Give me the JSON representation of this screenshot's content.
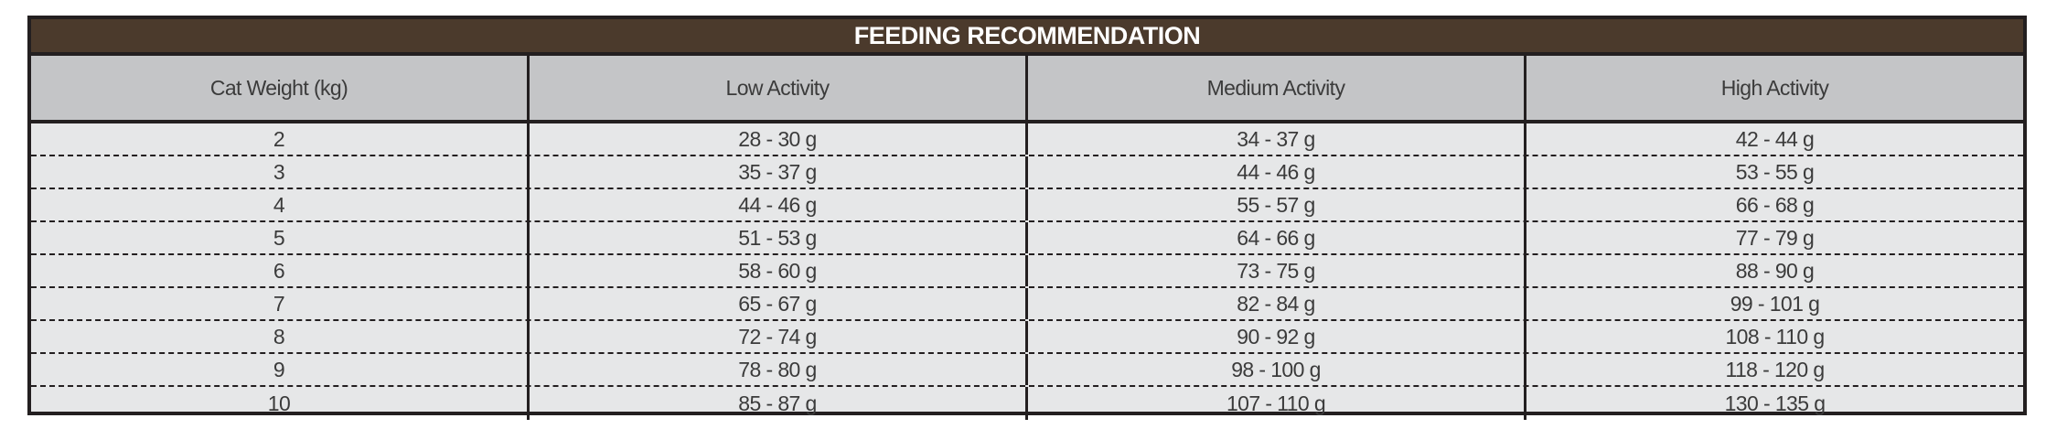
{
  "title": "FEEDING RECOMMENDATION",
  "columns": [
    "Cat Weight (kg)",
    "Low Activity",
    "Medium Activity",
    "High Activity"
  ],
  "rows": [
    [
      "2",
      "28 - 30 g",
      "34 - 37 g",
      "42 - 44 g"
    ],
    [
      "3",
      "35 - 37 g",
      "44 - 46 g",
      "53 - 55 g"
    ],
    [
      "4",
      "44 - 46 g",
      "55 - 57 g",
      "66 - 68 g"
    ],
    [
      "5",
      "51 - 53 g",
      "64 - 66 g",
      "77 - 79 g"
    ],
    [
      "6",
      "58 - 60 g",
      "73 - 75 g",
      "88 - 90 g"
    ],
    [
      "7",
      "65 - 67 g",
      "82 - 84 g",
      "99 - 101 g"
    ],
    [
      "8",
      "72 - 74 g",
      "90 - 92 g",
      "108 - 110 g"
    ],
    [
      "9",
      "78 - 80 g",
      "98 - 100 g",
      "118 - 120 g"
    ],
    [
      "10",
      "85 - 87 g",
      "107 - 110 g",
      "130 - 135 g"
    ]
  ],
  "colors": {
    "title_bg": "#4b3a2c",
    "header_bg": "#c4c5c7",
    "body_bg": "#e6e7e8",
    "border": "#231f20"
  }
}
